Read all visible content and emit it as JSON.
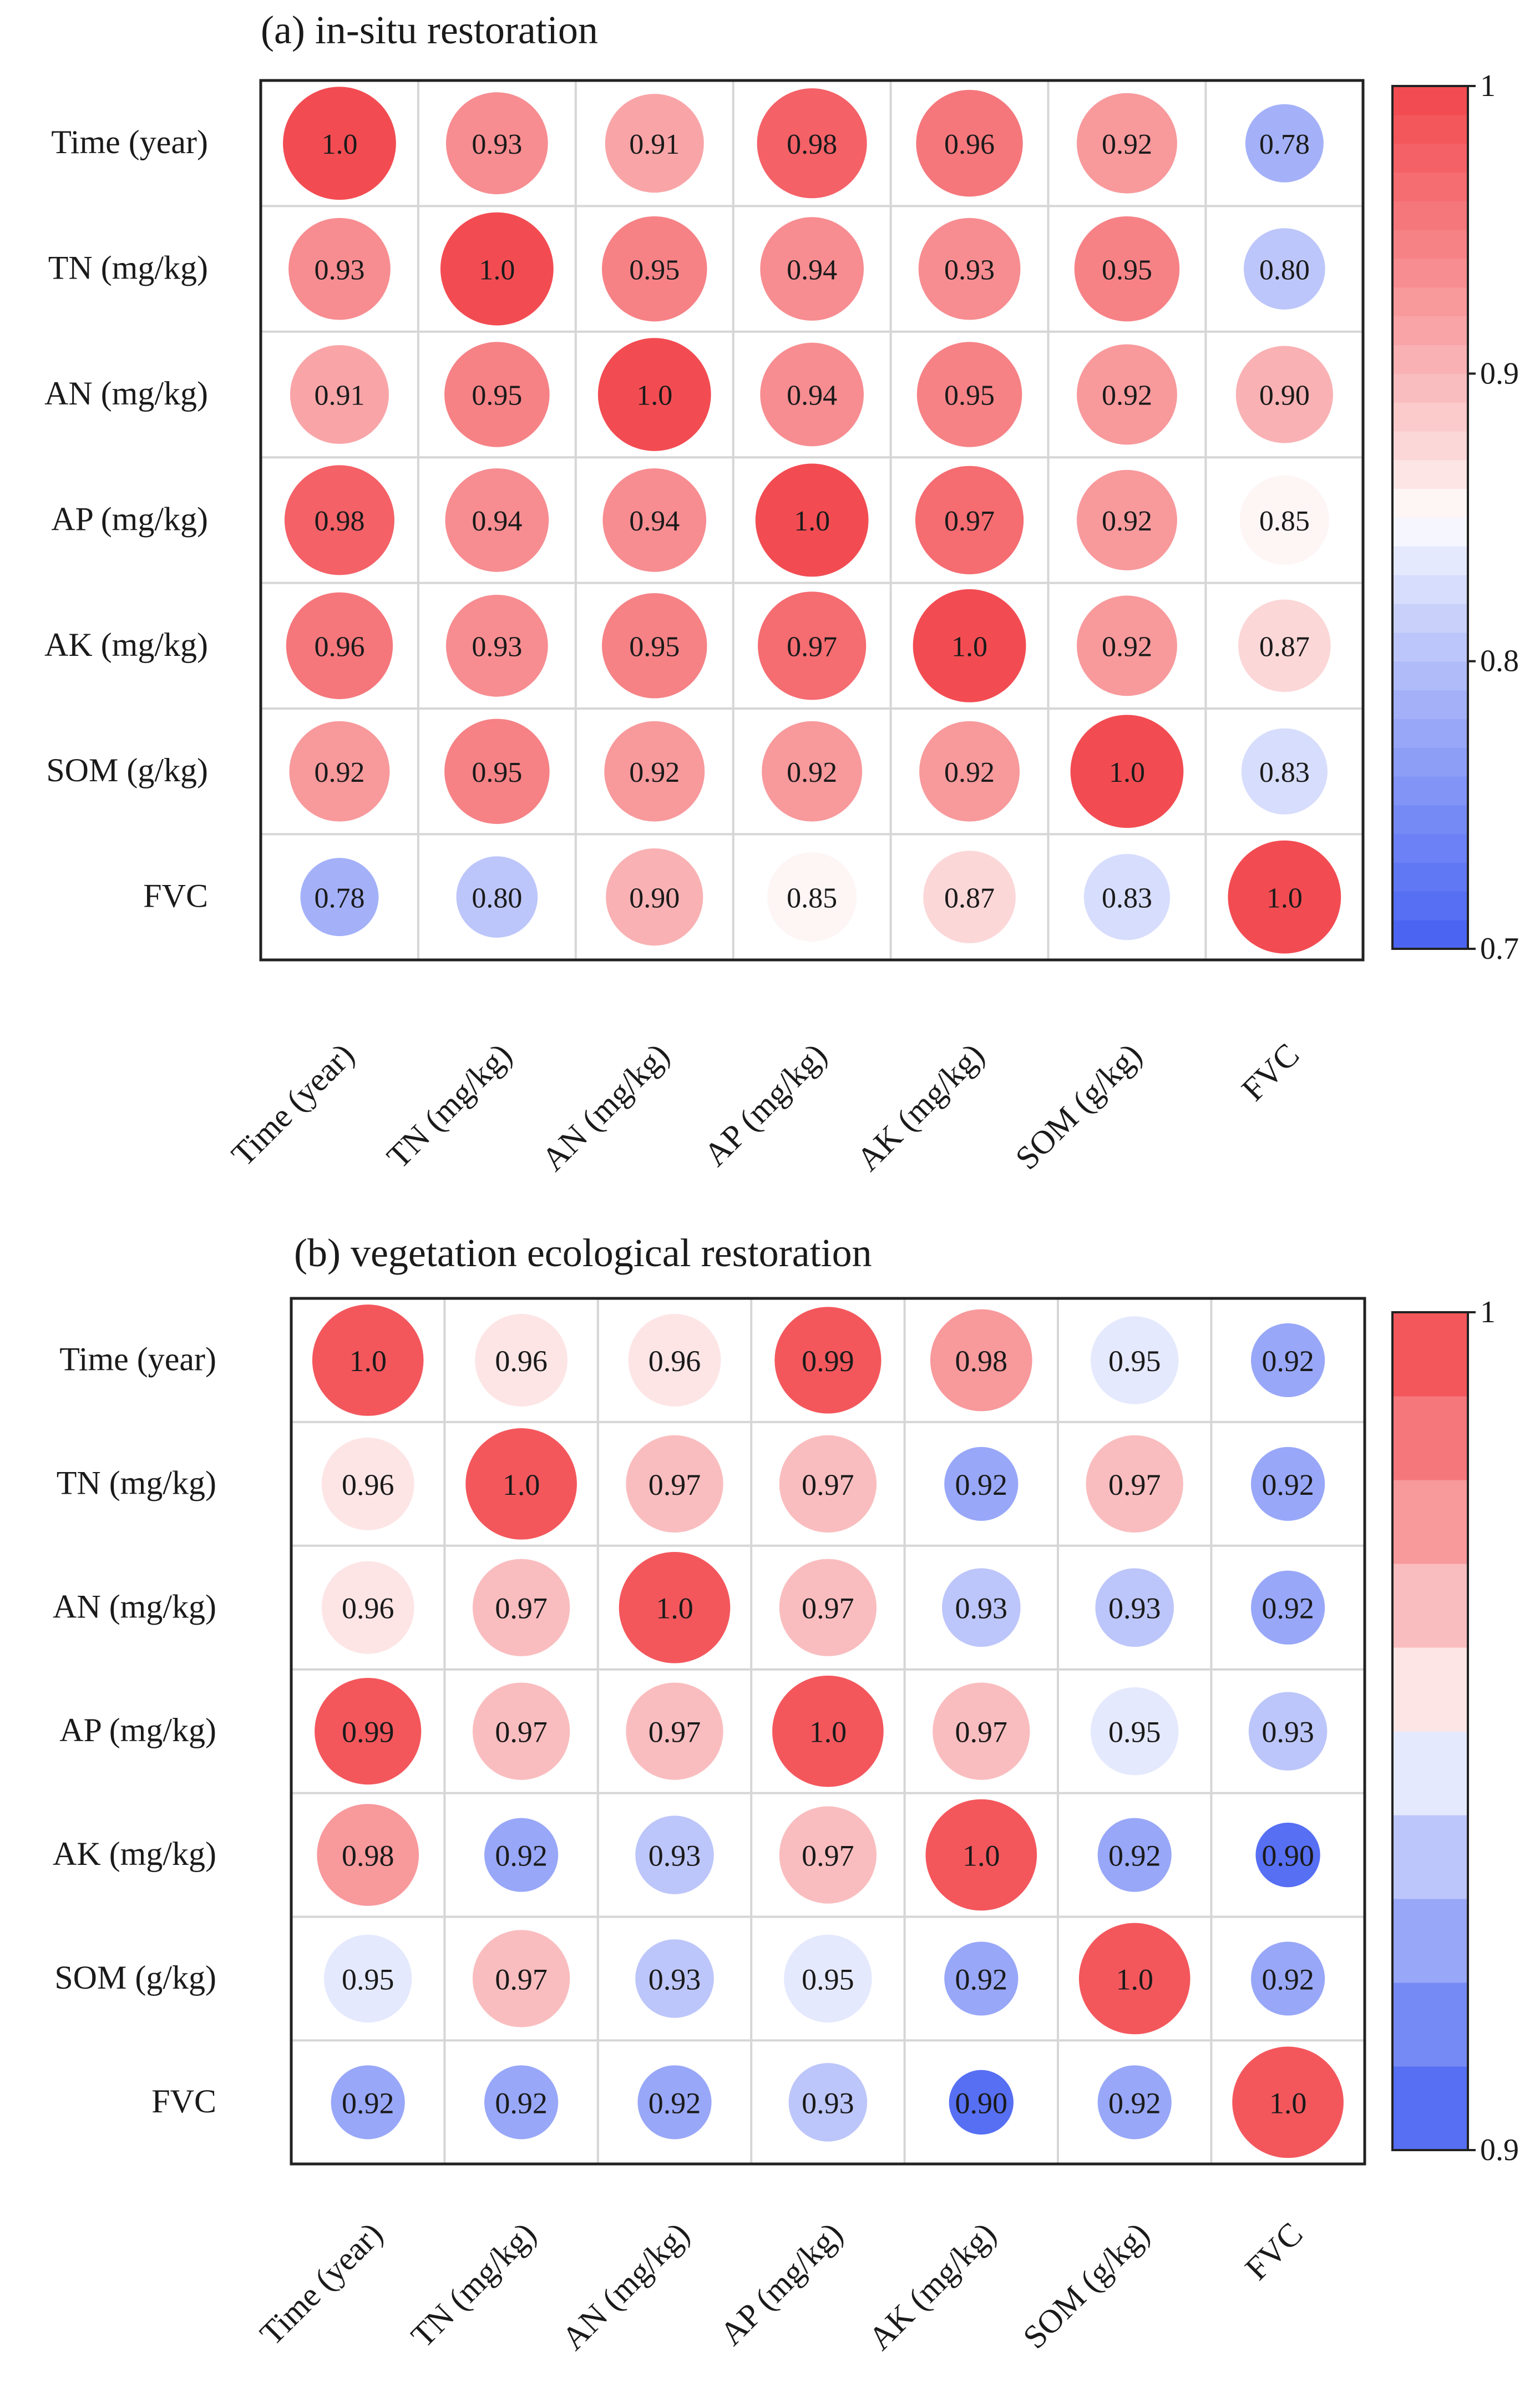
{
  "chart_data": [
    {
      "type": "heatmap",
      "title": "(a) in-situ restoration",
      "variables": [
        "Time (year)",
        "TN (mg/kg)",
        "AN (mg/kg)",
        "AP (mg/kg)",
        "AK (mg/kg)",
        "SOM (g/kg)",
        "FVC"
      ],
      "value_labels": [
        [
          "1.0",
          "0.93",
          "0.91",
          "0.98",
          "0.96",
          "0.92",
          "0.78"
        ],
        [
          "0.93",
          "1.0",
          "0.95",
          "0.94",
          "0.93",
          "0.95",
          "0.80"
        ],
        [
          "0.91",
          "0.95",
          "1.0",
          "0.94",
          "0.95",
          "0.92",
          "0.90"
        ],
        [
          "0.98",
          "0.94",
          "0.94",
          "1.0",
          "0.97",
          "0.92",
          "0.85"
        ],
        [
          "0.96",
          "0.93",
          "0.95",
          "0.97",
          "1.0",
          "0.92",
          "0.87"
        ],
        [
          "0.92",
          "0.95",
          "0.92",
          "0.92",
          "0.92",
          "1.0",
          "0.83"
        ],
        [
          "0.78",
          "0.80",
          "0.90",
          "0.85",
          "0.87",
          "0.83",
          "1.0"
        ]
      ],
      "colorbar": {
        "min": 0.7,
        "max": 1.0,
        "ticks": [
          1.0,
          0.9,
          0.8,
          0.7
        ],
        "tick_labels": [
          "1",
          "0.9",
          "0.8",
          "0.7"
        ],
        "steps": 30
      }
    },
    {
      "type": "heatmap",
      "title": "(b) vegetation ecological restoration",
      "variables": [
        "Time (year)",
        "TN (mg/kg)",
        "AN (mg/kg)",
        "AP (mg/kg)",
        "AK (mg/kg)",
        "SOM (g/kg)",
        "FVC"
      ],
      "value_labels": [
        [
          "1.0",
          "0.96",
          "0.96",
          "0.99",
          "0.98",
          "0.95",
          "0.92"
        ],
        [
          "0.96",
          "1.0",
          "0.97",
          "0.97",
          "0.92",
          "0.97",
          "0.92"
        ],
        [
          "0.96",
          "0.97",
          "1.0",
          "0.97",
          "0.93",
          "0.93",
          "0.92"
        ],
        [
          "0.99",
          "0.97",
          "0.97",
          "1.0",
          "0.97",
          "0.95",
          "0.93"
        ],
        [
          "0.98",
          "0.92",
          "0.93",
          "0.97",
          "1.0",
          "0.92",
          "0.90"
        ],
        [
          "0.95",
          "0.97",
          "0.93",
          "0.95",
          "0.92",
          "1.0",
          "0.92"
        ],
        [
          "0.92",
          "0.92",
          "0.92",
          "0.93",
          "0.90",
          "0.92",
          "1.0"
        ]
      ],
      "colorbar": {
        "min": 0.9,
        "max": 1.0,
        "ticks": [
          1.0,
          0.9
        ],
        "tick_labels": [
          "1",
          "0.9"
        ],
        "steps": 10
      }
    }
  ],
  "colors": {
    "high": "#f2474d",
    "mid": "#ffffff",
    "low": "#4661f2",
    "grid": "#d6d6d6",
    "frame": "#222222"
  }
}
